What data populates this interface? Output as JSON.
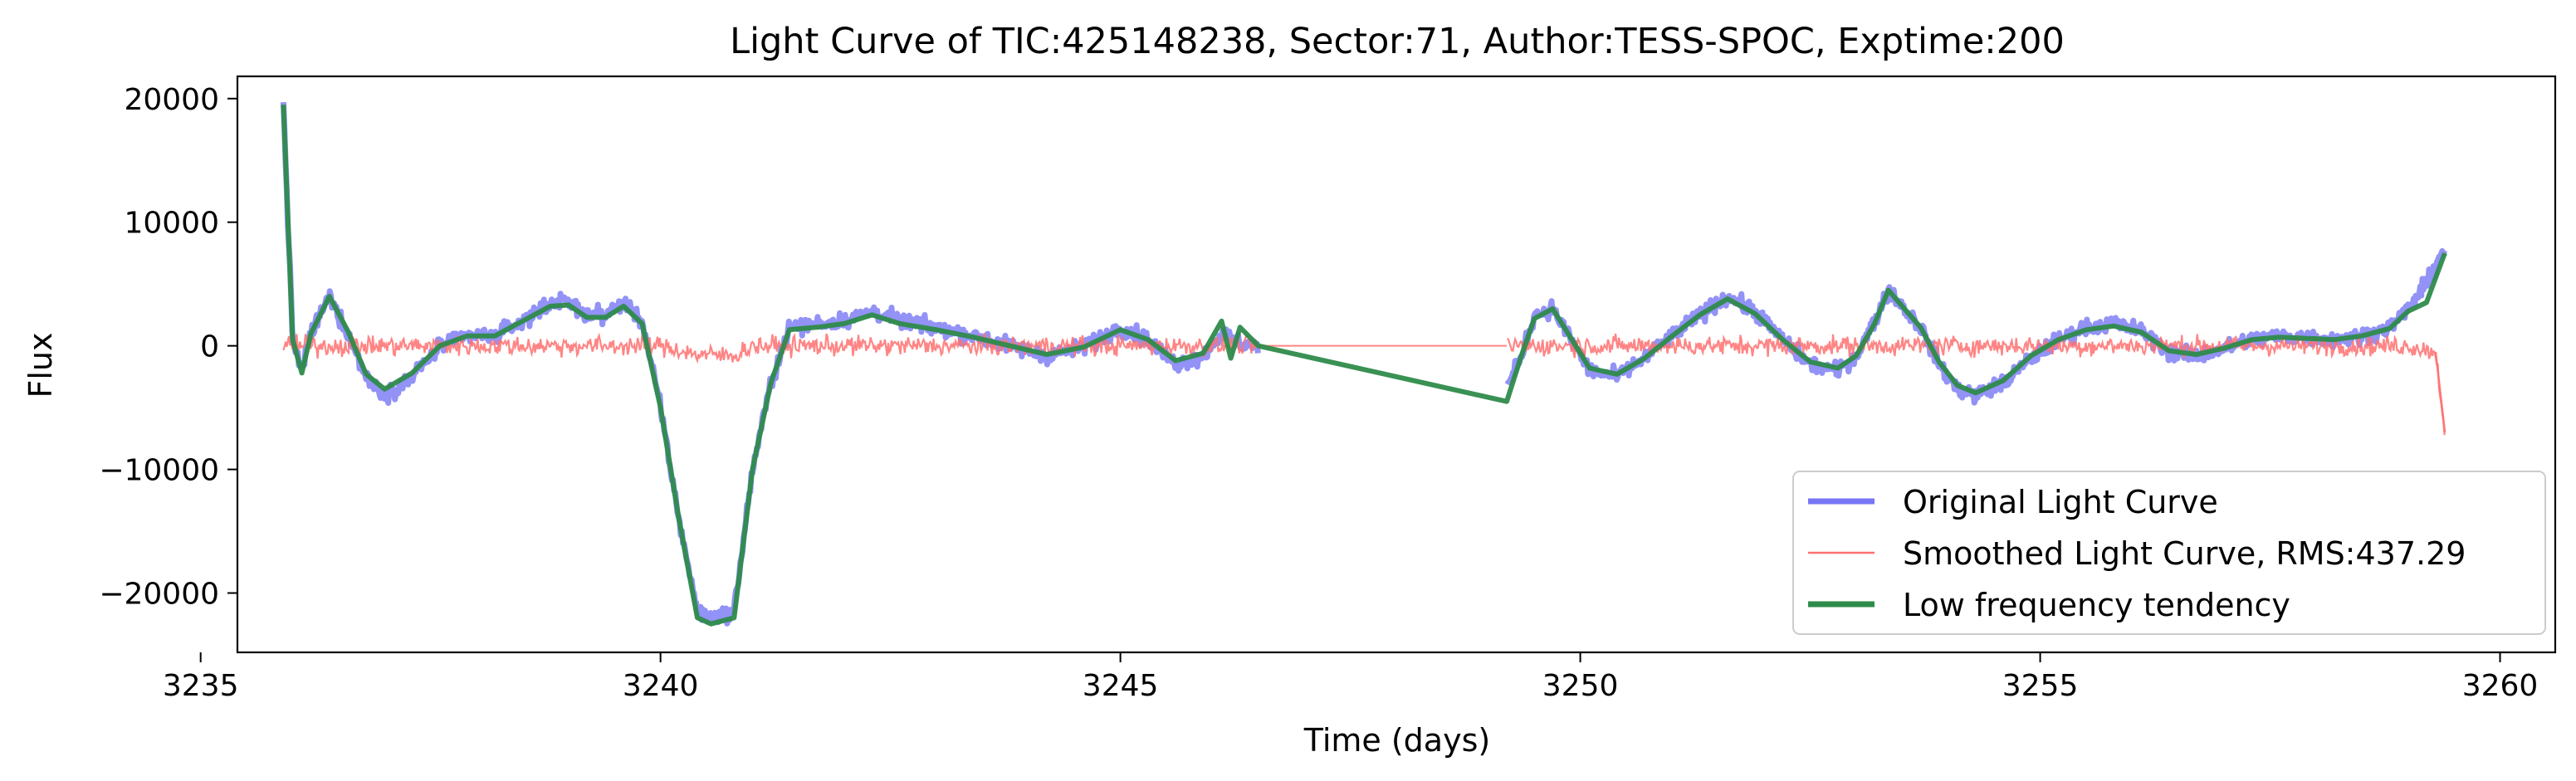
{
  "chart_data": {
    "type": "line",
    "title": "Light Curve of TIC:425148238, Sector:71, Author:TESS-SPOC, Exptime:200",
    "xlabel": "Time (days)",
    "ylabel": "Flux",
    "xlim": [
      3235.4,
      3260.6
    ],
    "ylim": [
      -24800,
      21800
    ],
    "xticks": [
      3235,
      3240,
      3245,
      3250,
      3255,
      3260
    ],
    "xtick_labels": [
      "3235",
      "3240",
      "3245",
      "3250",
      "3255",
      "3260"
    ],
    "yticks": [
      20000,
      10000,
      0,
      -10000,
      -20000
    ],
    "ytick_labels": [
      "20000",
      "10000",
      "0",
      "−10000",
      "−20000"
    ],
    "grid": false,
    "legend_position": "lower-right",
    "gap": [
      3246.5,
      3249.2
    ],
    "series": [
      {
        "name": "Original Light Curve",
        "color": "#7777f5",
        "style": "thick-noisy",
        "x": [
          3235.9,
          3236.0,
          3236.1,
          3236.2,
          3236.4,
          3236.6,
          3236.8,
          3237.0,
          3237.3,
          3237.6,
          3237.9,
          3238.2,
          3238.5,
          3238.8,
          3239.0,
          3239.2,
          3239.4,
          3239.6,
          3239.8,
          3240.0,
          3240.2,
          3240.4,
          3240.55,
          3240.8,
          3241.0,
          3241.2,
          3241.4,
          3241.7,
          3242.0,
          3242.3,
          3242.6,
          3243.0,
          3243.4,
          3243.8,
          3244.2,
          3244.6,
          3245.0,
          3245.3,
          3245.6,
          3245.9,
          3246.1,
          3246.3,
          3246.5,
          3249.2,
          3249.35,
          3249.5,
          3249.7,
          3249.9,
          3250.1,
          3250.4,
          3250.7,
          3251.0,
          3251.3,
          3251.6,
          3251.9,
          3252.2,
          3252.5,
          3252.8,
          3253.0,
          3253.2,
          3253.35,
          3253.5,
          3253.7,
          3253.9,
          3254.1,
          3254.3,
          3254.6,
          3254.9,
          3255.2,
          3255.5,
          3255.8,
          3256.1,
          3256.4,
          3256.7,
          3257.0,
          3257.3,
          3257.6,
          3257.9,
          3258.2,
          3258.5,
          3258.8,
          3259.0,
          3259.2,
          3259.4
        ],
        "y": [
          19500,
          500,
          -2000,
          1000,
          4000,
          1000,
          -2500,
          -4000,
          -2500,
          0,
          800,
          800,
          2000,
          3500,
          3500,
          2500,
          2500,
          3500,
          2000,
          -5000,
          -14000,
          -21500,
          -22000,
          -21500,
          -10000,
          -3000,
          1500,
          1800,
          2000,
          2800,
          2000,
          1500,
          800,
          0,
          -800,
          -100,
          1500,
          500,
          -1500,
          -800,
          1000,
          200,
          0,
          -3500,
          -1000,
          2500,
          3000,
          500,
          -2000,
          -2500,
          -1000,
          800,
          2500,
          4000,
          2800,
          500,
          -1500,
          -2000,
          -800,
          2000,
          4500,
          3200,
          1500,
          -1500,
          -3500,
          -4000,
          -3000,
          -1000,
          500,
          1500,
          1800,
          1200,
          -500,
          -800,
          -200,
          500,
          800,
          700,
          500,
          800,
          1500,
          3000,
          5000,
          8000
        ]
      },
      {
        "name": "Smoothed Light Curve, RMS:437.29",
        "color": "#ff7070",
        "style": "thin-noise",
        "rms": 437.29,
        "x": [
          3235.9,
          3238.0,
          3240.0,
          3240.4,
          3240.8,
          3241.0,
          3243.0,
          3245.0,
          3246.5,
          3249.2,
          3251.0,
          3253.0,
          3253.4,
          3255.0,
          3257.0,
          3259.0,
          3259.3,
          3259.4
        ],
        "y": [
          0,
          0,
          0,
          -700,
          -800,
          0,
          0,
          0,
          0,
          0,
          0,
          0,
          0,
          0,
          0,
          0,
          -500,
          -7000
        ]
      },
      {
        "name": "Low frequency tendency",
        "color": "#2e8b4a",
        "style": "thick",
        "x": [
          3235.9,
          3236.0,
          3236.1,
          3236.2,
          3236.4,
          3236.6,
          3236.8,
          3237.0,
          3237.3,
          3237.6,
          3237.9,
          3238.2,
          3238.5,
          3238.8,
          3239.0,
          3239.2,
          3239.4,
          3239.6,
          3239.8,
          3240.0,
          3240.2,
          3240.4,
          3240.55,
          3240.8,
          3241.0,
          3241.2,
          3241.4,
          3241.7,
          3242.0,
          3242.3,
          3242.6,
          3243.0,
          3243.4,
          3243.8,
          3244.2,
          3244.6,
          3245.0,
          3245.3,
          3245.6,
          3245.9,
          3246.1,
          3246.2,
          3246.3,
          3246.5,
          3249.2,
          3249.35,
          3249.5,
          3249.7,
          3249.9,
          3250.1,
          3250.4,
          3250.7,
          3251.0,
          3251.3,
          3251.6,
          3251.9,
          3252.2,
          3252.5,
          3252.8,
          3253.0,
          3253.2,
          3253.35,
          3253.5,
          3253.7,
          3253.9,
          3254.1,
          3254.3,
          3254.6,
          3254.9,
          3255.2,
          3255.5,
          3255.8,
          3256.1,
          3256.4,
          3256.7,
          3257.0,
          3257.3,
          3257.6,
          3257.9,
          3258.2,
          3258.5,
          3258.8,
          3259.0,
          3259.2,
          3259.4
        ],
        "y": [
          19500,
          500,
          -2200,
          1000,
          4000,
          1200,
          -2300,
          -3500,
          -2200,
          0,
          800,
          800,
          2000,
          3200,
          3300,
          2300,
          2300,
          3200,
          1800,
          -5000,
          -14000,
          -22000,
          -22500,
          -22000,
          -10000,
          -3000,
          1300,
          1500,
          1800,
          2500,
          1800,
          1300,
          700,
          0,
          -700,
          -100,
          1300,
          500,
          -1200,
          -600,
          2000,
          -1000,
          1500,
          0,
          -4500,
          -1000,
          2200,
          3000,
          600,
          -1800,
          -2300,
          -1000,
          800,
          2500,
          3800,
          2600,
          500,
          -1300,
          -1800,
          -800,
          1800,
          4500,
          3200,
          1500,
          -1300,
          -3200,
          -3800,
          -2800,
          -800,
          500,
          1300,
          1600,
          1100,
          -400,
          -700,
          -200,
          500,
          700,
          600,
          500,
          800,
          1400,
          2800,
          3500,
          7500
        ]
      }
    ],
    "legend": {
      "entries": [
        {
          "label": "Original Light Curve",
          "color": "#7777f5"
        },
        {
          "label": "Smoothed Light Curve, RMS:437.29",
          "color": "#ff7070"
        },
        {
          "label": "Low frequency tendency",
          "color": "#2e8b4a"
        }
      ]
    }
  }
}
